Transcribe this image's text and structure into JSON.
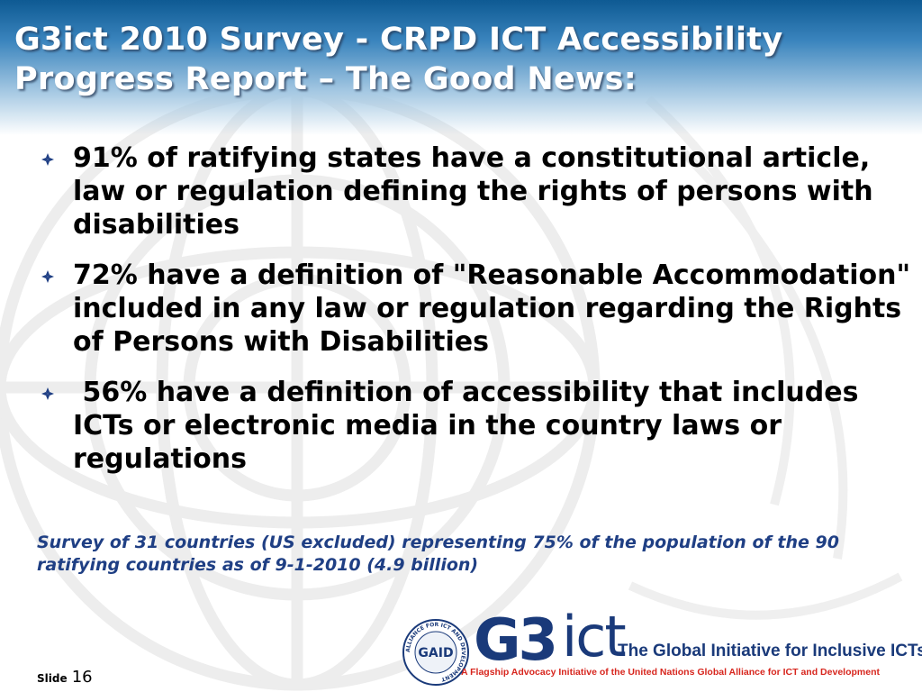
{
  "slide": {
    "title": "G3ict 2010 Survey - CRPD ICT Accessibility Progress Report – The Good News:",
    "bullets": [
      {
        "text": "91% of ratifying states have a constitutional article, law or regulation defining the rights of persons with disabilities"
      },
      {
        "text": "72% have a definition of \"Reasonable Accommodation\" included in any law or regulation regarding the Rights of Persons with Disabilities"
      },
      {
        "text": " 56% have a definition of accessibility that includes ICTs or electronic media in the country laws or regulations"
      }
    ],
    "note": "Survey of 31 countries (US excluded) representing 75% of the population of the 90 ratifying countries as of 9-1-2010 (4.9 billion)"
  },
  "footer": {
    "slide_label": "Slide",
    "slide_number": "16",
    "logo_g3": "G3",
    "logo_ict": "ict",
    "logo_tagline": "The Global Initiative for Inclusive ICTs",
    "logo_subline": "A Flagship Advocacy Initiative of the United Nations Global Alliance for ICT and Development",
    "seal_text": "GAID",
    "seal_ring_text": "ALLIANCE FOR ICT AND DEVELOPMENT"
  },
  "colors": {
    "header_dark": "#0e5a93",
    "title_text": "#ffffff",
    "note_text": "#1f3f84",
    "logo_blue": "#1a3a7a",
    "logo_red": "#d7261e",
    "bullet_marker": "#1f3f84"
  },
  "icons": {
    "bullet": "diamond-bullet-icon",
    "background": "un-globe-watermark",
    "seal": "gaid-seal-logo"
  }
}
